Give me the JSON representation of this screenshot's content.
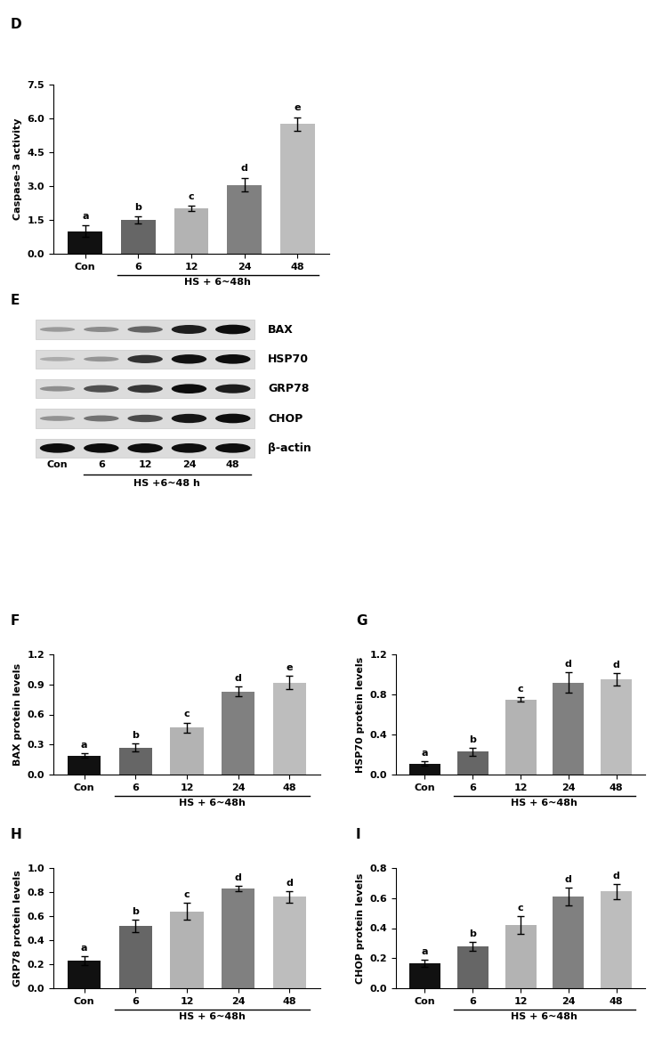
{
  "chart_data": [
    {
      "panel": "D",
      "type": "bar",
      "ylabel": "Caspase-3 activity",
      "categories": [
        "Con",
        "6",
        "12",
        "24",
        "48"
      ],
      "values": [
        1.0,
        1.5,
        2.0,
        3.05,
        5.75
      ],
      "errors": [
        0.25,
        0.15,
        0.12,
        0.3,
        0.3
      ],
      "letters": [
        "a",
        "b",
        "c",
        "d",
        "e"
      ],
      "colors": [
        "#111111",
        "#666666",
        "#b3b3b3",
        "#808080",
        "#bdbdbd"
      ],
      "ylim": [
        0,
        7.5
      ],
      "yticks": [
        {
          "value": 0,
          "label": "0.0"
        },
        1.5,
        {
          "value": 3,
          "label": "3.0"
        },
        4.5,
        {
          "value": 6,
          "label": "6.0"
        },
        7.5
      ],
      "group_label": "HS + 6~48h"
    },
    {
      "panel": "F",
      "type": "bar",
      "ylabel": "BAX protein levels",
      "categories": [
        "Con",
        "6",
        "12",
        "24",
        "48"
      ],
      "values": [
        0.19,
        0.27,
        0.47,
        0.83,
        0.92
      ],
      "errors": [
        0.02,
        0.04,
        0.05,
        0.05,
        0.07
      ],
      "letters": [
        "a",
        "b",
        "c",
        "d",
        "e"
      ],
      "colors": [
        "#111111",
        "#666666",
        "#b3b3b3",
        "#808080",
        "#bdbdbd"
      ],
      "ylim": [
        0,
        1.2
      ],
      "yticks": [
        {
          "value": 0,
          "label": "0.0"
        },
        0.3,
        0.6,
        0.9,
        1.2
      ],
      "group_label": "HS + 6~48h"
    },
    {
      "panel": "G",
      "type": "bar",
      "ylabel": "HSP70 protein levels",
      "categories": [
        "Con",
        "6",
        "12",
        "24",
        "48"
      ],
      "values": [
        0.11,
        0.23,
        0.75,
        0.92,
        0.95
      ],
      "errors": [
        0.02,
        0.04,
        0.02,
        0.1,
        0.06
      ],
      "letters": [
        "a",
        "b",
        "c",
        "d",
        "d"
      ],
      "colors": [
        "#111111",
        "#666666",
        "#b3b3b3",
        "#808080",
        "#bdbdbd"
      ],
      "ylim": [
        0,
        1.2
      ],
      "yticks": [
        {
          "value": 0,
          "label": "0.0"
        },
        0.4,
        0.8,
        1.2
      ],
      "group_label": "HS + 6~48h"
    },
    {
      "panel": "H",
      "type": "bar",
      "ylabel": "GRP78 protein levels",
      "categories": [
        "Con",
        "6",
        "12",
        "24",
        "48"
      ],
      "values": [
        0.23,
        0.52,
        0.64,
        0.83,
        0.76
      ],
      "errors": [
        0.04,
        0.05,
        0.07,
        0.02,
        0.05
      ],
      "letters": [
        "a",
        "b",
        "c",
        "d",
        "d"
      ],
      "colors": [
        "#111111",
        "#666666",
        "#b3b3b3",
        "#808080",
        "#bdbdbd"
      ],
      "ylim": [
        0,
        1.0
      ],
      "yticks": [
        {
          "value": 0,
          "label": "0.0"
        },
        0.2,
        0.4,
        0.6,
        0.8,
        1.0
      ],
      "group_label": "HS + 6~48h"
    },
    {
      "panel": "I",
      "type": "bar",
      "ylabel": "CHOP protein levels",
      "categories": [
        "Con",
        "6",
        "12",
        "24",
        "48"
      ],
      "values": [
        0.165,
        0.28,
        0.42,
        0.61,
        0.645
      ],
      "errors": [
        0.025,
        0.03,
        0.06,
        0.06,
        0.05
      ],
      "letters": [
        "a",
        "b",
        "c",
        "d",
        "d"
      ],
      "colors": [
        "#111111",
        "#666666",
        "#b3b3b3",
        "#808080",
        "#bdbdbd"
      ],
      "ylim": [
        0,
        0.8
      ],
      "yticks": [
        {
          "value": 0,
          "label": "0.0"
        },
        0.2,
        0.4,
        0.6,
        0.8
      ],
      "group_label": "HS + 6~48h"
    }
  ],
  "blot": {
    "panel": "E",
    "rows": [
      "BAX",
      "HSP70",
      "GRP78",
      "CHOP",
      "β-actin"
    ],
    "lanes": [
      "Con",
      "6",
      "12",
      "24",
      "48"
    ],
    "group_label": "HS +6~48 h"
  }
}
